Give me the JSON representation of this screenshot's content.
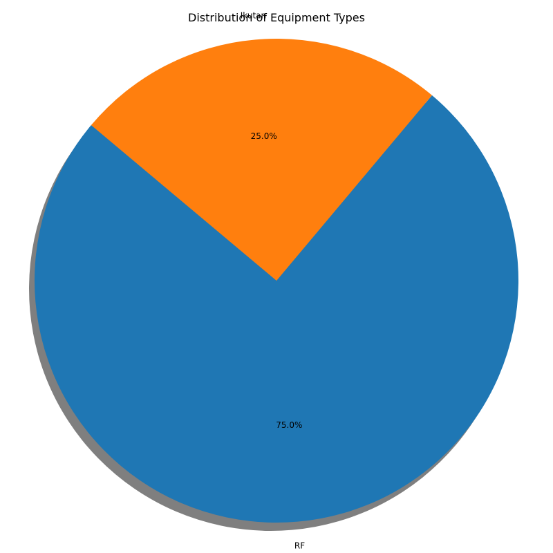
{
  "chart_data": {
    "type": "pie",
    "title": "Distribution of Equipment Types",
    "categories": [
      "RF",
      "Ikutan"
    ],
    "values": [
      75,
      25
    ],
    "percent_labels": [
      "75.0%",
      "25.0%"
    ],
    "colors": [
      "#1f77b4",
      "#ff7f0e"
    ],
    "shadow": true,
    "start_angle_deg": 140
  }
}
